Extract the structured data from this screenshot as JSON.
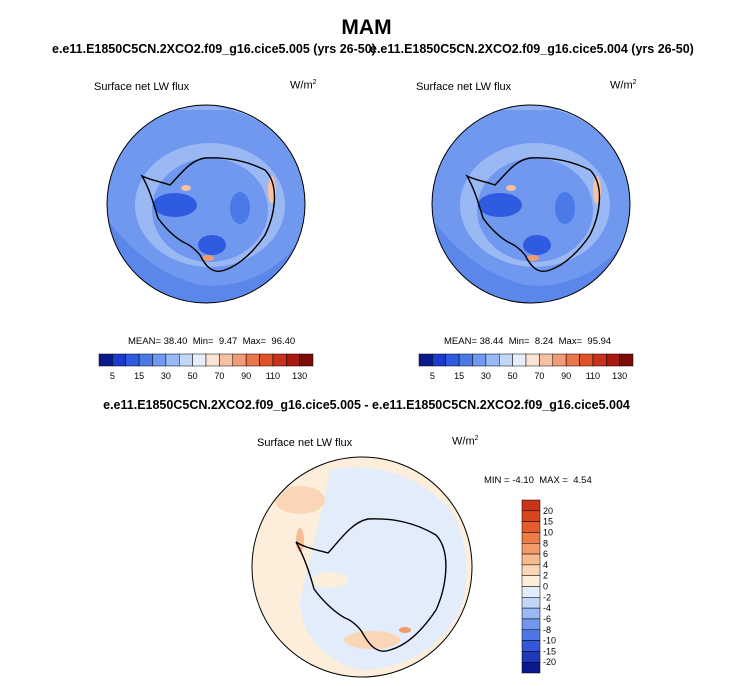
{
  "main_title": "MAM",
  "panels": [
    {
      "case_title": "e.e11.E1850C5CN.2XCO2.f09_g16.cice5.005 (yrs 26-50)",
      "var_label": "Surface net LW flux",
      "unit_base": "W/m",
      "unit_exp": "2",
      "mean_label": "MEAN=",
      "mean": "38.40",
      "min_label": "Min=",
      "min": "9.47",
      "max_label": "Max=",
      "max": "96.40"
    },
    {
      "case_title": "e.e11.E1850C5CN.2XCO2.f09_g16.cice5.004 (yrs 26-50)",
      "var_label": "Surface net LW flux",
      "unit_base": "W/m",
      "unit_exp": "2",
      "mean_label": "MEAN=",
      "mean": "38.44",
      "min_label": "Min=",
      "min": "8.24",
      "max_label": "Max=",
      "max": "95.94"
    }
  ],
  "colorbar": {
    "colors": [
      "#0a1a8c",
      "#1c3cc8",
      "#2f5be0",
      "#4a7ae8",
      "#6f98ee",
      "#9ab8f3",
      "#c4d6f7",
      "#e8eefb",
      "#fbe3d6",
      "#f6c0a3",
      "#f19a73",
      "#ea7549",
      "#e0522b",
      "#c8331a",
      "#a81c10",
      "#7a0d08"
    ],
    "tick_labels": [
      "5",
      "15",
      "30",
      "50",
      "70",
      "90",
      "110",
      "130"
    ]
  },
  "diff": {
    "title": "e.e11.E1850C5CN.2XCO2.f09_g16.cice5.005 - e.e11.E1850C5CN.2XCO2.f09_g16.cice5.004",
    "var_label": "Surface net LW flux",
    "unit_base": "W/m",
    "unit_exp": "2",
    "min_label": "MIN =",
    "min": "-4.10",
    "max_label": "MAX =",
    "max": "4.54",
    "colorbar": {
      "colors": [
        "#c8331a",
        "#d9451f",
        "#e75a2a",
        "#ee7a45",
        "#f39a68",
        "#f7b98e",
        "#fad6b6",
        "#fdeedc",
        "#e3ecfb",
        "#c4d6f7",
        "#9ab8f3",
        "#7397ec",
        "#5076e4",
        "#3357d6",
        "#1e3ab8",
        "#0a1a8c"
      ],
      "tick_labels": [
        "20",
        "15",
        "10",
        "8",
        "6",
        "4",
        "2",
        "0",
        "-2",
        "-4",
        "-6",
        "-8",
        "-10",
        "-15",
        "-20"
      ]
    }
  }
}
